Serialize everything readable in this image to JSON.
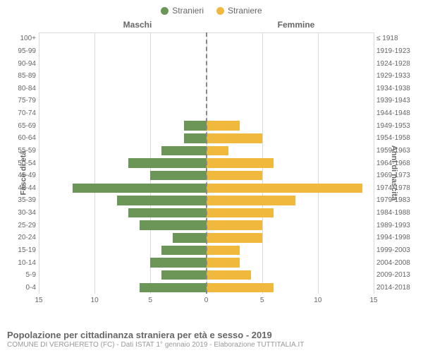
{
  "legend": {
    "male": {
      "label": "Stranieri",
      "color": "#6b9658"
    },
    "female": {
      "label": "Straniere",
      "color": "#f1b83e"
    }
  },
  "headers": {
    "left": "Maschi",
    "right": "Femmine"
  },
  "axis_labels": {
    "left": "Fasce di età",
    "right": "Anni di nascita"
  },
  "title": "Popolazione per cittadinanza straniera per età e sesso - 2019",
  "subtitle": "COMUNE DI VERGHERETO (FC) - Dati ISTAT 1° gennaio 2019 - Elaborazione TUTTITALIA.IT",
  "chart": {
    "type": "population-pyramid",
    "xlim": 15,
    "xticks": [
      15,
      10,
      5,
      0,
      5,
      10,
      15
    ],
    "grid_color": "#d9d9d9",
    "centerline_color": "#888888",
    "background_color": "#ffffff",
    "text_color": "#666666",
    "bar_colors": {
      "male": "#6b9658",
      "female": "#f1b83e"
    },
    "label_fontsize": 10,
    "rows": [
      {
        "age": "100+",
        "birth": "≤ 1918",
        "m": 0,
        "f": 0
      },
      {
        "age": "95-99",
        "birth": "1919-1923",
        "m": 0,
        "f": 0
      },
      {
        "age": "90-94",
        "birth": "1924-1928",
        "m": 0,
        "f": 0
      },
      {
        "age": "85-89",
        "birth": "1929-1933",
        "m": 0,
        "f": 0
      },
      {
        "age": "80-84",
        "birth": "1934-1938",
        "m": 0,
        "f": 0
      },
      {
        "age": "75-79",
        "birth": "1939-1943",
        "m": 0,
        "f": 0
      },
      {
        "age": "70-74",
        "birth": "1944-1948",
        "m": 0,
        "f": 0
      },
      {
        "age": "65-69",
        "birth": "1949-1953",
        "m": 2,
        "f": 3
      },
      {
        "age": "60-64",
        "birth": "1954-1958",
        "m": 2,
        "f": 5
      },
      {
        "age": "55-59",
        "birth": "1959-1963",
        "m": 4,
        "f": 2
      },
      {
        "age": "50-54",
        "birth": "1964-1968",
        "m": 7,
        "f": 6
      },
      {
        "age": "45-49",
        "birth": "1969-1973",
        "m": 5,
        "f": 5
      },
      {
        "age": "40-44",
        "birth": "1974-1978",
        "m": 12,
        "f": 14
      },
      {
        "age": "35-39",
        "birth": "1979-1983",
        "m": 8,
        "f": 8
      },
      {
        "age": "30-34",
        "birth": "1984-1988",
        "m": 7,
        "f": 6
      },
      {
        "age": "25-29",
        "birth": "1989-1993",
        "m": 6,
        "f": 5
      },
      {
        "age": "20-24",
        "birth": "1994-1998",
        "m": 3,
        "f": 5
      },
      {
        "age": "15-19",
        "birth": "1999-2003",
        "m": 4,
        "f": 3
      },
      {
        "age": "10-14",
        "birth": "2004-2008",
        "m": 5,
        "f": 3
      },
      {
        "age": "5-9",
        "birth": "2009-2013",
        "m": 4,
        "f": 4
      },
      {
        "age": "0-4",
        "birth": "2014-2018",
        "m": 6,
        "f": 6
      }
    ]
  }
}
